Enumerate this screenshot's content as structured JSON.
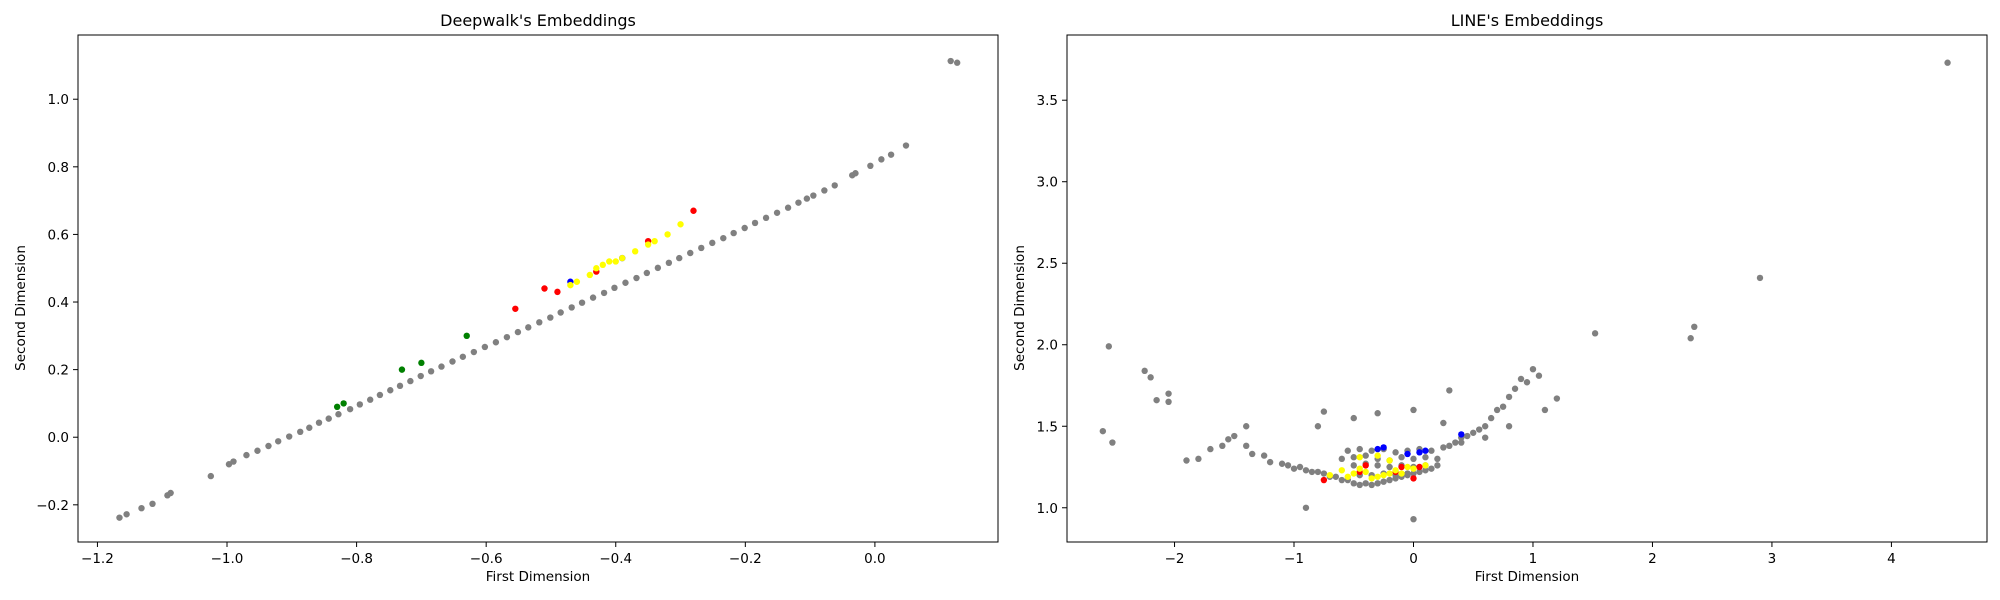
{
  "chart_data": [
    {
      "type": "scatter",
      "title": "Deepwalk's Embeddings",
      "xlabel": "First Dimension",
      "ylabel": "Second Dimension",
      "xlim": [
        -1.23,
        0.19
      ],
      "ylim": [
        -0.31,
        1.19
      ],
      "xticks": [
        -1.2,
        -1.0,
        -0.8,
        -0.6,
        -0.4,
        -0.2,
        0.0
      ],
      "xtick_labels": [
        "−1.2",
        "−1.0",
        "−0.8",
        "−0.6",
        "−0.4",
        "−0.2",
        "0.0"
      ],
      "yticks": [
        -0.2,
        0.0,
        0.2,
        0.4,
        0.6,
        0.8,
        1.0
      ],
      "ytick_labels": [
        "−0.2",
        "0.0",
        "0.2",
        "0.4",
        "0.6",
        "0.8",
        "1.0"
      ],
      "grid": false,
      "legend": "none",
      "series": [
        {
          "color": "#808080",
          "x": [
            -1.166,
            -1.155,
            -1.132,
            -1.115,
            -1.092,
            -1.087,
            -1.025,
            -0.997,
            -0.99,
            -0.97,
            -0.953,
            -0.936,
            -0.921,
            -0.904,
            -0.887,
            -0.873,
            -0.858,
            -0.843,
            -0.828,
            -0.81,
            -0.795,
            -0.779,
            -0.764,
            -0.748,
            -0.733,
            -0.717,
            -0.701,
            -0.685,
            -0.669,
            -0.652,
            -0.636,
            -0.619,
            -0.602,
            -0.585,
            -0.568,
            -0.551,
            -0.535,
            -0.518,
            -0.501,
            -0.485,
            -0.468,
            -0.452,
            -0.435,
            -0.418,
            -0.402,
            -0.385,
            -0.368,
            -0.352,
            -0.335,
            -0.318,
            -0.302,
            -0.285,
            -0.268,
            -0.251,
            -0.234,
            -0.218,
            -0.201,
            -0.185,
            -0.168,
            -0.151,
            -0.134,
            -0.118,
            -0.105,
            -0.095,
            -0.078,
            -0.062,
            -0.035,
            -0.03,
            -0.007,
            0.01,
            0.025,
            0.048,
            0.117,
            0.127
          ],
          "y": [
            -0.238,
            -0.228,
            -0.21,
            -0.197,
            -0.172,
            -0.165,
            -0.115,
            -0.08,
            -0.072,
            -0.053,
            -0.04,
            -0.026,
            -0.012,
            0.002,
            0.016,
            0.028,
            0.043,
            0.055,
            0.068,
            0.083,
            0.097,
            0.111,
            0.125,
            0.139,
            0.152,
            0.166,
            0.181,
            0.195,
            0.209,
            0.224,
            0.238,
            0.252,
            0.267,
            0.281,
            0.296,
            0.311,
            0.325,
            0.34,
            0.354,
            0.369,
            0.384,
            0.398,
            0.413,
            0.427,
            0.442,
            0.457,
            0.471,
            0.486,
            0.501,
            0.516,
            0.53,
            0.545,
            0.56,
            0.575,
            0.589,
            0.604,
            0.619,
            0.634,
            0.649,
            0.664,
            0.679,
            0.694,
            0.706,
            0.715,
            0.73,
            0.745,
            0.775,
            0.781,
            0.803,
            0.822,
            0.836,
            0.863,
            1.113,
            1.108
          ]
        },
        {
          "color": "#008000",
          "x": [
            -0.83,
            -0.82,
            -0.73,
            -0.7,
            -0.63
          ],
          "y": [
            0.09,
            0.1,
            0.2,
            0.22,
            0.3
          ]
        },
        {
          "color": "#ff0000",
          "x": [
            -0.555,
            -0.51,
            -0.49,
            -0.43,
            -0.35,
            -0.28
          ],
          "y": [
            0.38,
            0.44,
            0.43,
            0.49,
            0.58,
            0.67
          ]
        },
        {
          "color": "#0000ff",
          "x": [
            -0.47,
            -0.39
          ],
          "y": [
            0.46,
            0.53
          ]
        },
        {
          "color": "#ffff00",
          "x": [
            -0.47,
            -0.46,
            -0.44,
            -0.43,
            -0.42,
            -0.41,
            -0.4,
            -0.39,
            -0.37,
            -0.35,
            -0.34,
            -0.32,
            -0.3
          ],
          "y": [
            0.45,
            0.46,
            0.48,
            0.5,
            0.51,
            0.52,
            0.52,
            0.53,
            0.55,
            0.57,
            0.58,
            0.6,
            0.63
          ]
        }
      ]
    },
    {
      "type": "scatter",
      "title": "LINE's Embeddings",
      "xlabel": "First Dimension",
      "ylabel": "Second Dimension",
      "xlim": [
        -2.9,
        4.8
      ],
      "ylim": [
        0.79,
        3.9
      ],
      "xticks": [
        -2,
        -1,
        0,
        1,
        2,
        3,
        4
      ],
      "xtick_labels": [
        "−2",
        "−1",
        "0",
        "1",
        "2",
        "3",
        "4"
      ],
      "yticks": [
        1.0,
        1.5,
        2.0,
        2.5,
        3.0,
        3.5
      ],
      "ytick_labels": [
        "1.0",
        "1.5",
        "2.0",
        "2.5",
        "3.0",
        "3.5"
      ],
      "grid": false,
      "legend": "none",
      "series": [
        {
          "color": "#808080",
          "x": [
            -2.6,
            -2.55,
            -2.52,
            -2.2,
            -2.25,
            -2.15,
            -2.05,
            -2.05,
            -1.9,
            -1.8,
            -1.7,
            -1.6,
            -1.55,
            -1.5,
            -1.4,
            -1.35,
            -1.25,
            -1.2,
            -1.1,
            -1.05,
            -1.0,
            -0.95,
            -0.9,
            -0.85,
            -0.8,
            -0.75,
            -0.7,
            -0.65,
            -0.6,
            -0.55,
            -0.5,
            -0.45,
            -0.4,
            -0.35,
            -0.3,
            -0.25,
            -0.2,
            -0.15,
            -0.1,
            -0.05,
            0.0,
            0.05,
            0.1,
            0.15,
            0.2,
            -0.6,
            -0.5,
            -0.4,
            -0.3,
            -0.2,
            -0.1,
            0.0,
            0.1,
            0.2,
            -0.55,
            -0.45,
            -0.35,
            -0.25,
            -0.15,
            -0.05,
            0.05,
            0.15,
            -0.5,
            -0.4,
            -0.3,
            -0.2,
            -0.1,
            0.0,
            0.1,
            -0.45,
            -0.35,
            -0.25,
            -0.15,
            -0.05,
            0.25,
            0.3,
            0.35,
            0.4,
            0.45,
            0.5,
            0.55,
            0.6,
            0.65,
            0.7,
            0.75,
            0.8,
            0.85,
            0.9,
            0.95,
            1.05,
            1.0,
            1.2,
            1.1,
            0.8,
            0.6,
            0.4,
            -0.8,
            -0.5,
            -0.3,
            0.0,
            0.3,
            -0.9,
            -1.4,
            -0.75,
            0.0,
            0.25,
            1.52,
            2.32,
            2.35,
            2.9,
            4.47
          ],
          "y": [
            1.47,
            1.99,
            1.4,
            1.8,
            1.84,
            1.66,
            1.7,
            1.65,
            1.29,
            1.3,
            1.36,
            1.38,
            1.42,
            1.44,
            1.38,
            1.33,
            1.32,
            1.28,
            1.27,
            1.26,
            1.24,
            1.25,
            1.23,
            1.22,
            1.22,
            1.21,
            1.19,
            1.19,
            1.17,
            1.17,
            1.15,
            1.14,
            1.15,
            1.14,
            1.15,
            1.16,
            1.17,
            1.18,
            1.19,
            1.2,
            1.21,
            1.22,
            1.23,
            1.24,
            1.26,
            1.3,
            1.31,
            1.32,
            1.3,
            1.29,
            1.31,
            1.3,
            1.31,
            1.3,
            1.35,
            1.36,
            1.35,
            1.36,
            1.34,
            1.35,
            1.36,
            1.35,
            1.26,
            1.27,
            1.26,
            1.25,
            1.26,
            1.25,
            1.26,
            1.2,
            1.2,
            1.21,
            1.2,
            1.21,
            1.37,
            1.38,
            1.4,
            1.43,
            1.44,
            1.46,
            1.48,
            1.5,
            1.55,
            1.6,
            1.62,
            1.68,
            1.73,
            1.79,
            1.77,
            1.81,
            1.85,
            1.67,
            1.6,
            1.5,
            1.43,
            1.4,
            1.5,
            1.55,
            1.58,
            1.6,
            1.72,
            1.0,
            1.5,
            1.59,
            0.93,
            1.52,
            2.07,
            2.04,
            2.11,
            2.41,
            3.73
          ]
        },
        {
          "color": "#ff0000",
          "x": [
            -0.75,
            -0.45,
            -0.4,
            -0.15,
            -0.1,
            0.0,
            0.05
          ],
          "y": [
            1.17,
            1.22,
            1.26,
            1.22,
            1.25,
            1.18,
            1.25
          ]
        },
        {
          "color": "#0000ff",
          "x": [
            -0.3,
            -0.25,
            -0.05,
            0.05,
            0.1,
            0.4
          ],
          "y": [
            1.36,
            1.37,
            1.33,
            1.34,
            1.35,
            1.45
          ]
        },
        {
          "color": "#ffff00",
          "x": [
            -0.7,
            -0.6,
            -0.55,
            -0.5,
            -0.45,
            -0.4,
            -0.35,
            -0.3,
            -0.25,
            -0.2,
            -0.15,
            -0.1,
            -0.05,
            0.0,
            0.1,
            -0.45,
            -0.3,
            -0.2
          ],
          "y": [
            1.2,
            1.23,
            1.19,
            1.21,
            1.24,
            1.22,
            1.18,
            1.19,
            1.2,
            1.21,
            1.23,
            1.21,
            1.25,
            1.24,
            1.26,
            1.31,
            1.32,
            1.29
          ]
        }
      ]
    }
  ]
}
